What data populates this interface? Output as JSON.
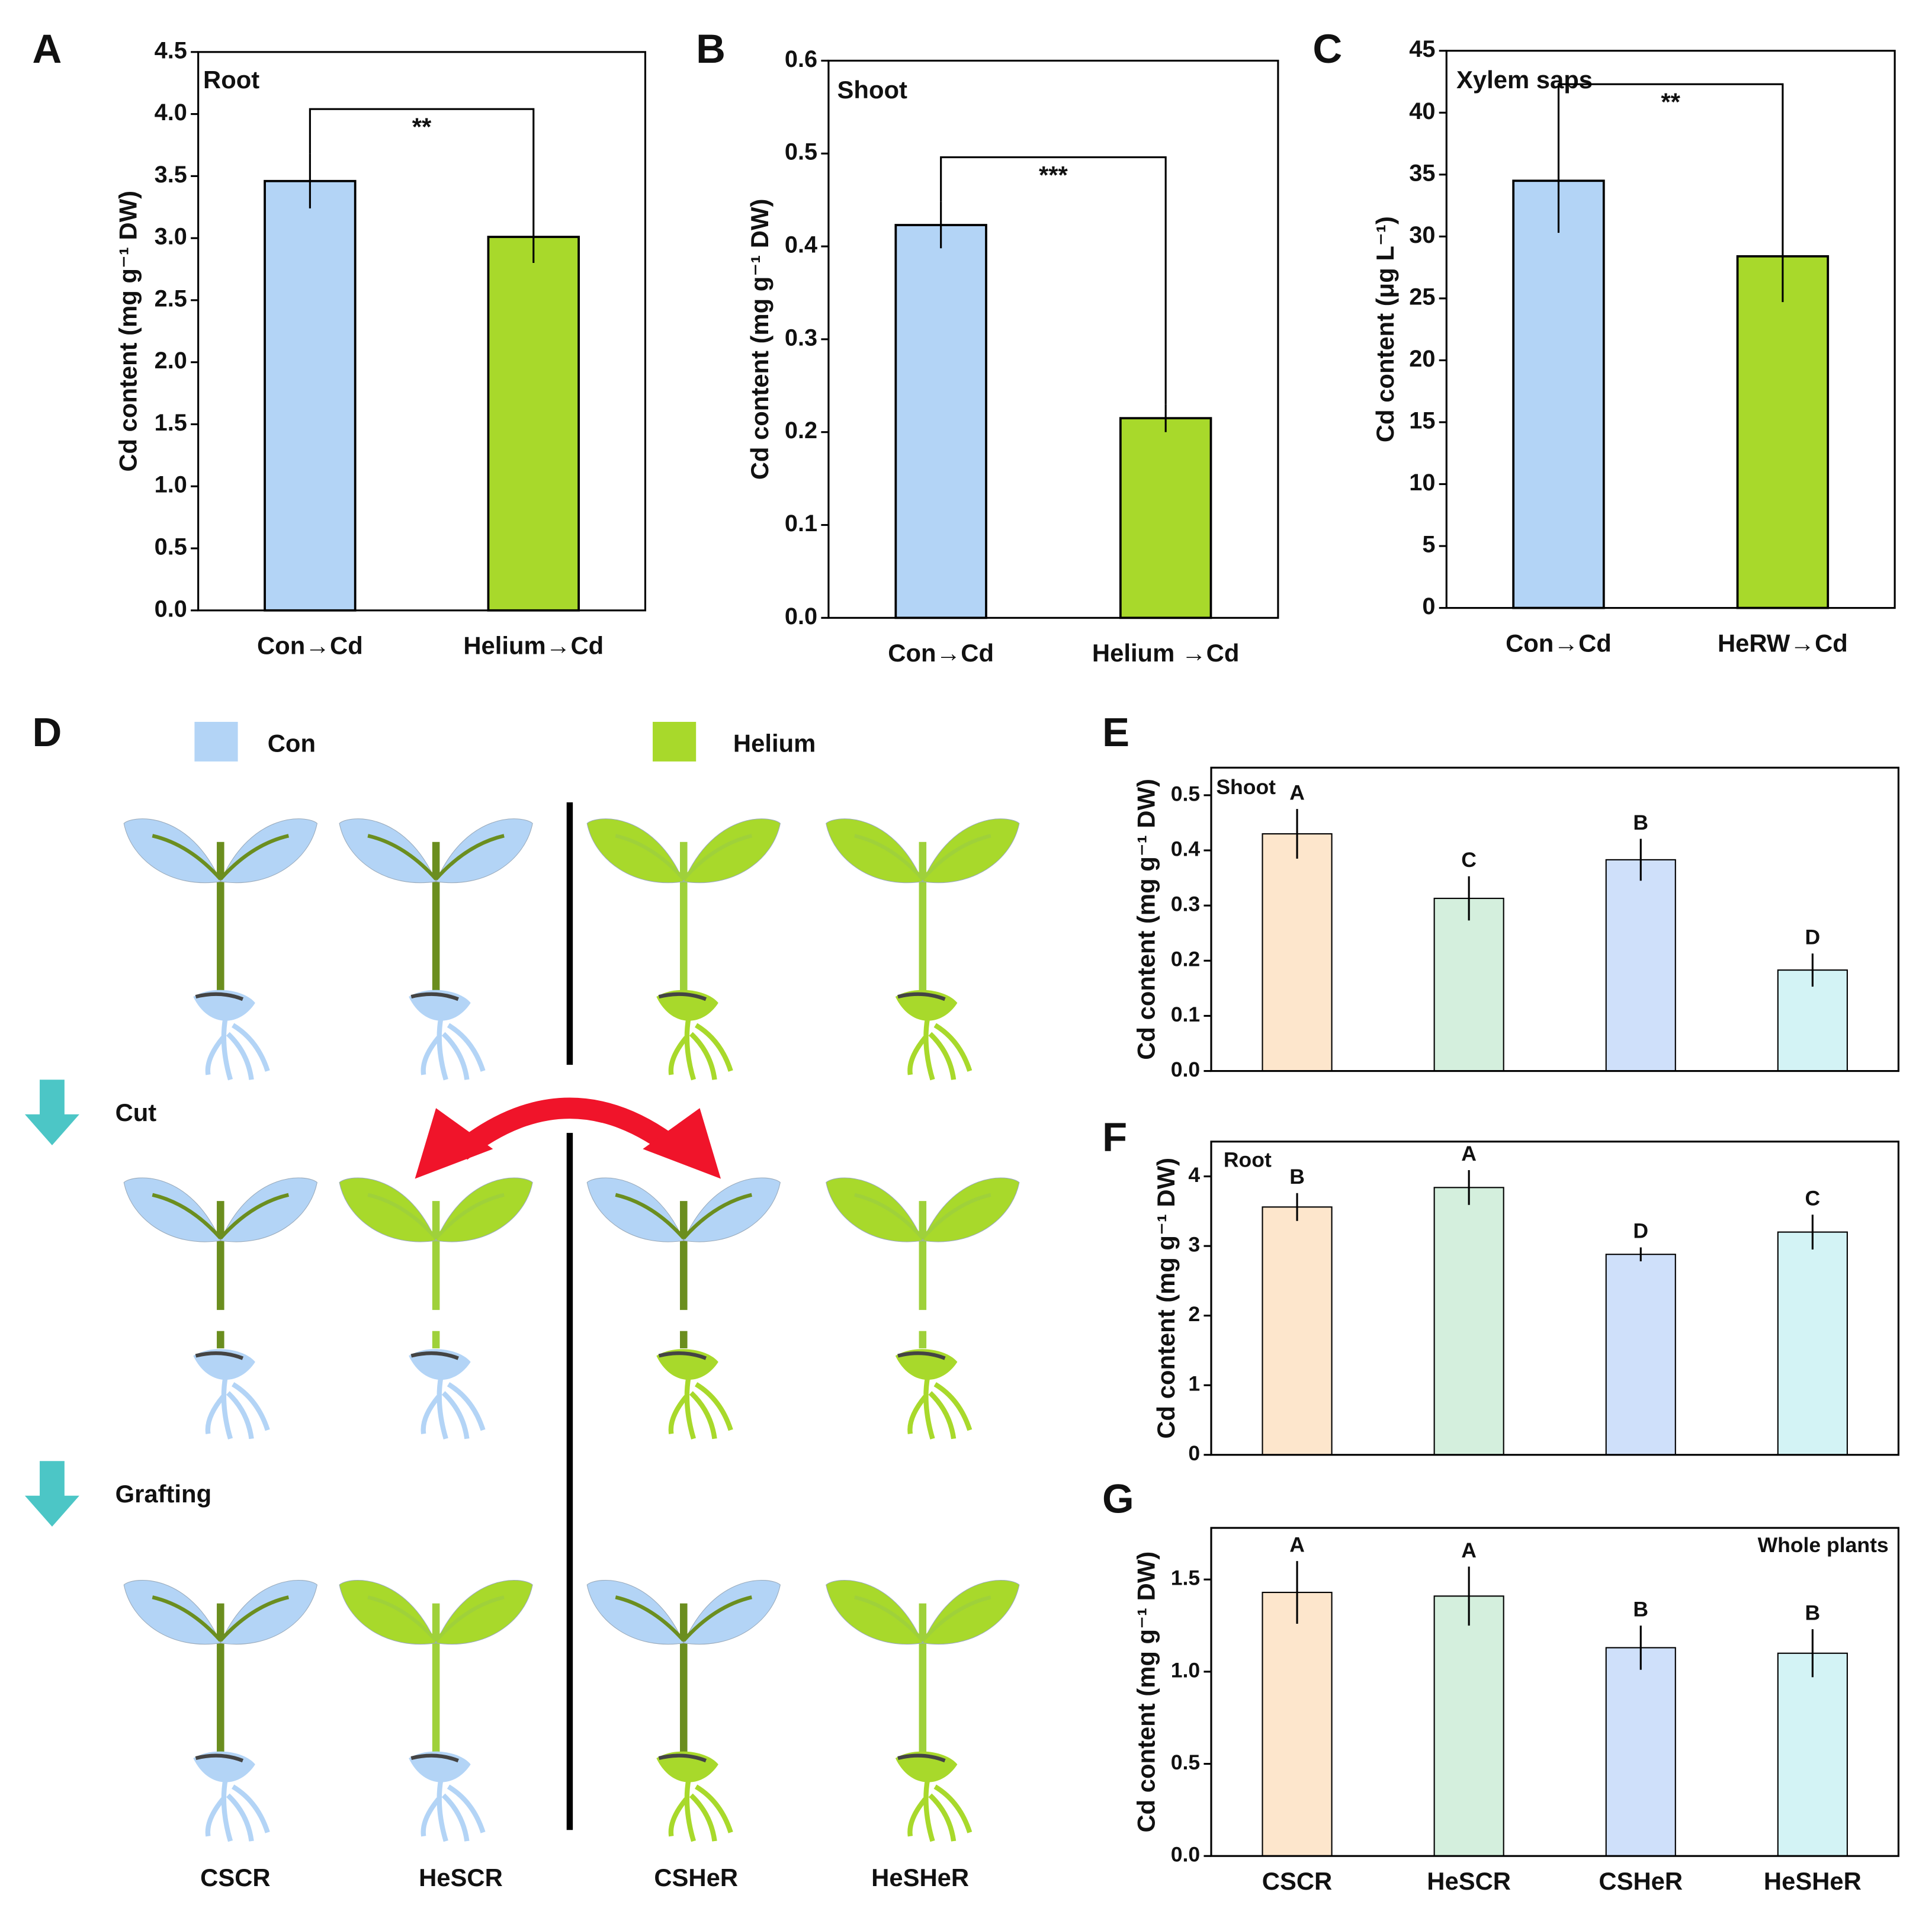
{
  "chart_data": [
    {
      "type": "bar",
      "panel": "A",
      "label": "Root",
      "ylabel": "Cd content (mg g⁻¹ DW)",
      "categories": [
        "Con→Cd",
        "Helium→Cd"
      ],
      "values": [
        3.46,
        3.01
      ],
      "errors": [
        0.22,
        0.21
      ],
      "colors": [
        "#b3d4f6",
        "#a8d92b"
      ],
      "ylim": [
        0,
        4.5
      ],
      "yticks": [
        {
          "value": 0,
          "label": "0.0"
        },
        0.5,
        {
          "value": 1,
          "label": "1.0"
        },
        1.5,
        {
          "value": 2,
          "label": "2.0"
        },
        2.5,
        {
          "value": 3,
          "label": "3.0"
        },
        3.5,
        {
          "value": 4,
          "label": "4.0"
        },
        4.5
      ],
      "significance": "**"
    },
    {
      "type": "bar",
      "panel": "B",
      "label": "Shoot",
      "ylabel": "Cd content (mg g⁻¹ DW)",
      "categories": [
        "Con→Cd",
        "Helium →Cd"
      ],
      "values": [
        0.423,
        0.215
      ],
      "errors": [
        0.025,
        0.015
      ],
      "colors": [
        "#b3d4f6",
        "#a8d92b"
      ],
      "ylim": [
        0,
        0.6
      ],
      "yticks": [
        {
          "value": 0,
          "label": "0.0"
        },
        0.1,
        0.2,
        0.3,
        0.4,
        0.5,
        0.6
      ],
      "significance": "***"
    },
    {
      "type": "bar",
      "panel": "C",
      "label": "Xylem saps",
      "ylabel": "Cd content (μg L⁻¹)",
      "categories": [
        "Con→Cd",
        "HeRW→Cd"
      ],
      "values": [
        34.5,
        28.4
      ],
      "errors": [
        4.2,
        3.7
      ],
      "colors": [
        "#b3d4f6",
        "#a8d92b"
      ],
      "ylim": [
        0,
        45
      ],
      "yticks": [
        0,
        5,
        10,
        15,
        20,
        25,
        30,
        35,
        40,
        45
      ],
      "significance": "**"
    },
    {
      "type": "bar",
      "panel": "E",
      "label": "Shoot",
      "ylabel": "Cd content (mg g⁻¹ DW)",
      "values": [
        0.43,
        0.313,
        0.383,
        0.183
      ],
      "errors": [
        0.045,
        0.04,
        0.038,
        0.03
      ],
      "letters": [
        "A",
        "C",
        "B",
        "D"
      ],
      "colors": [
        "#fde6cc",
        "#d4efdd",
        "#cfe0fa",
        "#d3f3f5"
      ],
      "ylim": [
        0,
        0.55
      ],
      "yticks": [
        {
          "value": 0,
          "label": "0.0"
        },
        0.1,
        0.2,
        0.3,
        0.4,
        0.5
      ]
    },
    {
      "type": "bar",
      "panel": "F",
      "label": "Root",
      "ylabel": "Cd content (mg g⁻¹ DW)",
      "values": [
        3.56,
        3.84,
        2.88,
        3.2
      ],
      "errors": [
        0.2,
        0.25,
        0.1,
        0.25
      ],
      "letters": [
        "B",
        "A",
        "D",
        "C"
      ],
      "colors": [
        "#fde6cc",
        "#d4efdd",
        "#cfe0fa",
        "#d3f3f5"
      ],
      "ylim": [
        0,
        4.5
      ],
      "yticks": [
        0,
        1,
        2,
        3,
        4
      ]
    },
    {
      "type": "bar",
      "panel": "G",
      "label": "Whole plants",
      "ylabel": "Cd content (mg g⁻¹ DW)",
      "categories": [
        "CSCR",
        "HeSCR",
        "CSHeR",
        "HeSHeR"
      ],
      "values": [
        1.43,
        1.41,
        1.13,
        1.1
      ],
      "errors": [
        0.17,
        0.16,
        0.12,
        0.13
      ],
      "letters": [
        "A",
        "A",
        "B",
        "B"
      ],
      "colors": [
        "#fde6cc",
        "#d4efdd",
        "#cfe0fa",
        "#d3f3f5"
      ],
      "ylim": [
        0,
        1.78
      ],
      "yticks": [
        {
          "value": 0,
          "label": "0.0"
        },
        0.5,
        {
          "value": 1,
          "label": "1.0"
        },
        1.5
      ]
    }
  ],
  "diagram": {
    "panel": "D",
    "legend": [
      "Con",
      "Helium"
    ],
    "steps": [
      "Cut",
      "Grafting"
    ],
    "labels": [
      "CSCR",
      "HeSCR",
      "CSHeR",
      "HeSHeR"
    ]
  }
}
